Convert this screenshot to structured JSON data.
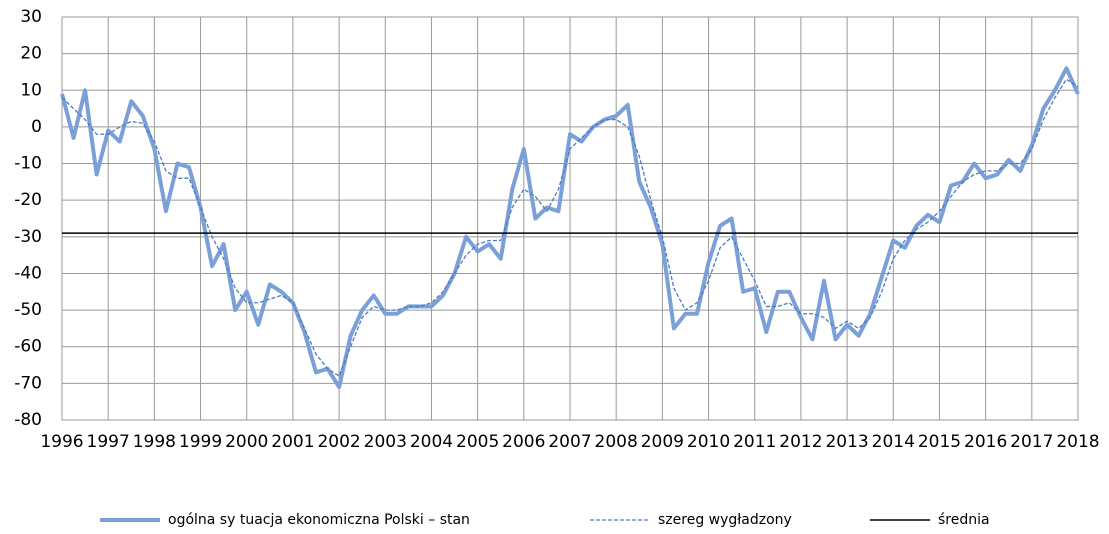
{
  "chart_data": {
    "type": "line",
    "categories": [
      "1996",
      null,
      null,
      null,
      "1997",
      null,
      null,
      null,
      "1998",
      null,
      null,
      null,
      "1999",
      null,
      null,
      null,
      "2000",
      null,
      null,
      null,
      "2001",
      null,
      null,
      null,
      "2002",
      null,
      null,
      null,
      "2003",
      null,
      null,
      null,
      "2004",
      null,
      null,
      null,
      "2005",
      null,
      null,
      null,
      "2006",
      null,
      null,
      null,
      "2007",
      null,
      null,
      null,
      "2008",
      null,
      null,
      null,
      "2009",
      null,
      null,
      null,
      "2010",
      null,
      null,
      null,
      "2011",
      null,
      null,
      null,
      "2012",
      null,
      null,
      null,
      "2013",
      null,
      null,
      null,
      "2014",
      null,
      null,
      null,
      "2015",
      null,
      null,
      null,
      "2016",
      null,
      null,
      null,
      "2017",
      null,
      null,
      null,
      "2018"
    ],
    "series": [
      {
        "name": "ogólna sy tuacja ekonomiczna Polski – stan",
        "color": "#7ba0d8",
        "style": "solid",
        "values": [
          9,
          -3,
          10,
          -13,
          -1,
          -4,
          7,
          3,
          -6,
          -23,
          -10,
          -11,
          -22,
          -38,
          -32,
          -50,
          -45,
          -54,
          -43,
          -45,
          -48,
          -56,
          -67,
          -66,
          -71,
          -57,
          -50,
          -46,
          -51,
          -51,
          -49,
          -49,
          -49,
          -46,
          -40,
          -30,
          -34,
          -32,
          -36,
          -17,
          -6,
          -25,
          -22,
          -23,
          -2,
          -4,
          0,
          2,
          3,
          6,
          -15,
          -22,
          -32,
          -55,
          -51,
          -51,
          -37,
          -27,
          -25,
          -45,
          -44,
          -56,
          -45,
          -45,
          -52,
          -58,
          -42,
          -58,
          -54,
          -57,
          -51,
          -41,
          -31,
          -33,
          -27,
          -24,
          -26,
          -16,
          -15,
          -10,
          -14,
          -13,
          -9,
          -12,
          -5,
          5,
          10,
          16,
          9
        ]
      },
      {
        "name": "szereg wygładzony",
        "color": "#4a7cc4",
        "style": "dashed",
        "values": [
          8,
          5,
          2,
          -2,
          -2,
          0,
          1.5,
          1,
          -4,
          -12,
          -14,
          -14,
          -22,
          -30,
          -36,
          -44,
          -48,
          -48,
          -47,
          -46,
          -48,
          -55,
          -62,
          -66,
          -68,
          -60,
          -52,
          -49,
          -50,
          -50,
          -49,
          -49,
          -48,
          -45,
          -40,
          -35,
          -32,
          -31,
          -31,
          -22,
          -17,
          -19,
          -23,
          -17,
          -6,
          -3,
          0,
          2,
          2,
          0,
          -8,
          -20,
          -30,
          -44,
          -50,
          -48,
          -42,
          -33,
          -30,
          -36,
          -42,
          -49,
          -49,
          -48,
          -51,
          -51,
          -52,
          -55,
          -53,
          -55,
          -52,
          -45,
          -36,
          -31,
          -28,
          -26,
          -23,
          -19,
          -15,
          -13,
          -12,
          -12,
          -10,
          -10,
          -6,
          2,
          8,
          13,
          11
        ]
      }
    ],
    "mean": {
      "name": "średnia",
      "value": -29,
      "color": "#000000"
    },
    "ylim": [
      -80,
      30
    ],
    "yticks": [
      -80,
      -70,
      -60,
      -50,
      -40,
      -30,
      -20,
      -10,
      0,
      10,
      20,
      30
    ],
    "grid": true,
    "legend": "bottom"
  }
}
